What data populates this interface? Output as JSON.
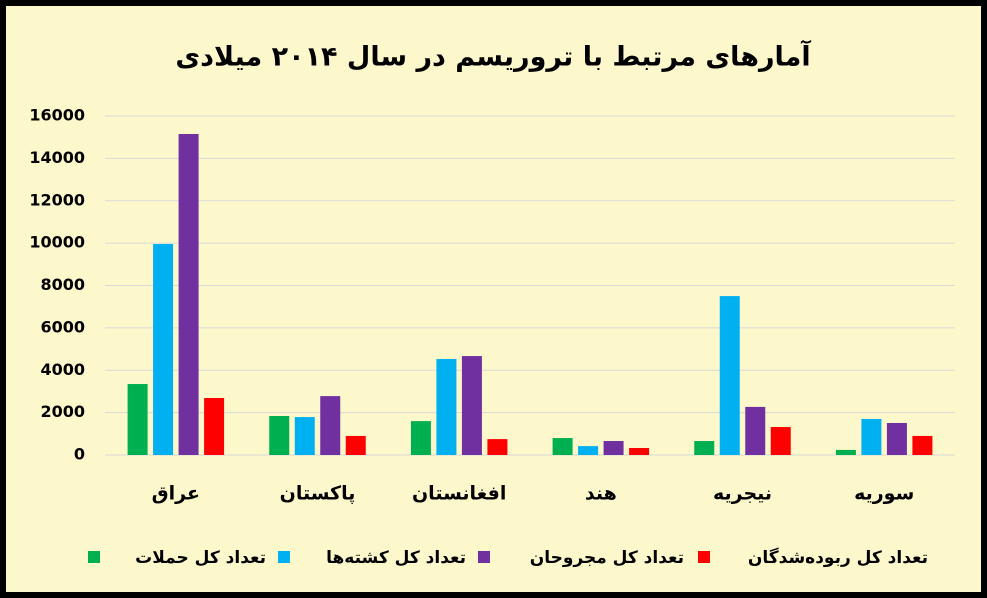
{
  "chart_data": {
    "type": "bar",
    "title": "آمارهای مرتبط با تروریسم در سال ۲۰۱۴ میلادی",
    "categories": [
      "عراق",
      "پاکستان",
      "افغانستان",
      "هند",
      "نیجریه",
      "سوریه"
    ],
    "series": [
      {
        "name": "تعداد کل حملات",
        "color": "#00b050",
        "values": [
          3350,
          1840,
          1600,
          800,
          660,
          240
        ]
      },
      {
        "name": "تعداد کل کشته‌ها",
        "color": "#00b0f0",
        "values": [
          9960,
          1790,
          4530,
          420,
          7500,
          1700
        ]
      },
      {
        "name": "تعداد کل مجروحان",
        "color": "#7030a0",
        "values": [
          15150,
          2780,
          4670,
          660,
          2270,
          1510
        ]
      },
      {
        "name": "تعداد کل ربوده‌شدگان",
        "color": "#ff0000",
        "values": [
          2690,
          900,
          750,
          330,
          1320,
          900
        ]
      }
    ],
    "ylim": [
      0,
      16000
    ],
    "yticks": [
      0,
      2000,
      4000,
      6000,
      8000,
      10000,
      12000,
      14000,
      16000
    ],
    "grid": true
  }
}
